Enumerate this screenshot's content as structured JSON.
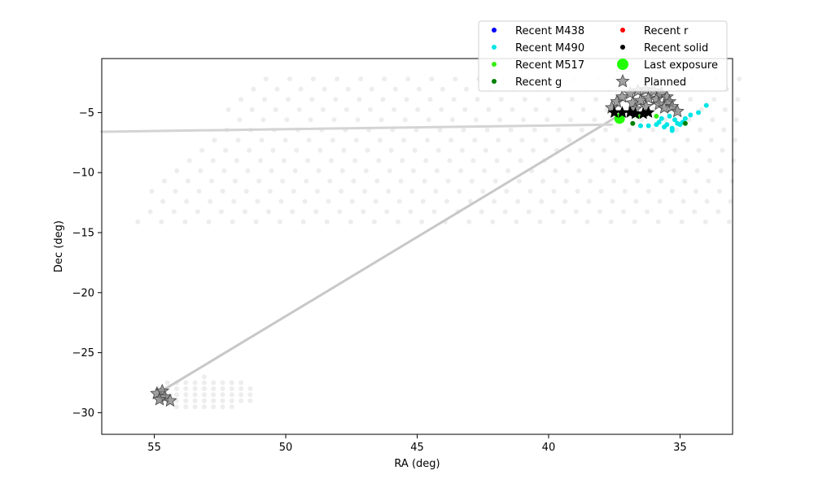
{
  "chart_data": {
    "type": "scatter",
    "title": "",
    "xlabel": "RA (deg)",
    "ylabel": "Dec (deg)",
    "xlim": [
      57.0,
      33.0
    ],
    "ylim": [
      -31.8,
      -0.5
    ],
    "x_inverted": true,
    "grid": false,
    "legend_position": "top-right, above plot",
    "xticks": [
      55,
      50,
      45,
      40,
      35
    ],
    "yticks": [
      -5,
      -10,
      -15,
      -20,
      -25,
      -30
    ],
    "legend": [
      {
        "label": "Recent M438",
        "color": "#0000ff",
        "marker": "dot"
      },
      {
        "label": "Recent M490",
        "color": "#00e5e5",
        "marker": "dot"
      },
      {
        "label": "Recent M517",
        "color": "#33ee11",
        "marker": "dot"
      },
      {
        "label": "Recent g",
        "color": "#008000",
        "marker": "dot"
      },
      {
        "label": "Recent r",
        "color": "#ff0000",
        "marker": "dot"
      },
      {
        "label": "Recent solid",
        "color": "#000000",
        "marker": "dot"
      },
      {
        "label": "Last exposure",
        "color": "#22ff00",
        "marker": "big-dot"
      },
      {
        "label": "Planned",
        "color": "#808080",
        "marker": "star"
      }
    ],
    "background_fields": {
      "color": "#d8d8d8",
      "regions": [
        {
          "name": "main-footprint",
          "ra_range": [
            33.2,
            56.6
          ],
          "dec_range": [
            -14.8,
            -2.2
          ]
        },
        {
          "name": "south-footprint",
          "ra_range": [
            51.0,
            55.2
          ],
          "dec_range": [
            -29.8,
            -27.0
          ]
        }
      ]
    },
    "series": [
      {
        "name": "Recent M490",
        "color": "#00e5e5",
        "points": [
          [
            35.8,
            -5.8
          ],
          [
            35.5,
            -6.0
          ],
          [
            35.3,
            -6.3
          ],
          [
            35.2,
            -5.6
          ],
          [
            35.0,
            -6.0
          ],
          [
            35.6,
            -6.2
          ],
          [
            35.9,
            -6.0
          ],
          [
            36.2,
            -6.1
          ],
          [
            34.8,
            -5.5
          ],
          [
            34.6,
            -5.2
          ],
          [
            34.3,
            -5.0
          ],
          [
            34.0,
            -4.4
          ],
          [
            35.4,
            -5.3
          ],
          [
            35.1,
            -5.9
          ],
          [
            36.5,
            -6.1
          ],
          [
            35.7,
            -5.5
          ],
          [
            35.3,
            -6.5
          ],
          [
            34.9,
            -5.8
          ]
        ]
      },
      {
        "name": "Recent M517",
        "color": "#33ee11",
        "points": [
          [
            35.9,
            -5.3
          ],
          [
            37.2,
            -5.6
          ],
          [
            36.6,
            -5.3
          ]
        ]
      },
      {
        "name": "Recent g",
        "color": "#008000",
        "points": [
          [
            36.8,
            -5.9
          ],
          [
            34.8,
            -5.9
          ]
        ]
      },
      {
        "name": "Last exposure",
        "color": "#22ff00",
        "points": [
          [
            37.3,
            -5.5
          ]
        ]
      },
      {
        "name": "Planned",
        "color": "#808080",
        "points": [
          [
            37.6,
            -4.6
          ],
          [
            37.4,
            -4.1
          ],
          [
            37.2,
            -3.7
          ],
          [
            36.9,
            -3.4
          ],
          [
            36.6,
            -3.2
          ],
          [
            36.3,
            -3.1
          ],
          [
            36.0,
            -3.2
          ],
          [
            35.7,
            -3.4
          ],
          [
            35.5,
            -3.7
          ],
          [
            35.4,
            -4.1
          ],
          [
            35.3,
            -4.5
          ],
          [
            35.1,
            -4.9
          ],
          [
            36.8,
            -4.2
          ],
          [
            36.5,
            -4.0
          ],
          [
            36.2,
            -3.8
          ],
          [
            35.9,
            -3.9
          ],
          [
            35.8,
            -4.3
          ],
          [
            36.3,
            -4.5
          ],
          [
            36.7,
            -4.7
          ],
          [
            35.6,
            -4.6
          ],
          [
            54.9,
            -28.4
          ],
          [
            54.7,
            -28.2
          ],
          [
            54.6,
            -28.7
          ],
          [
            54.4,
            -29.0
          ],
          [
            54.8,
            -28.9
          ]
        ]
      },
      {
        "name": "Planned (solid)",
        "color": "#000000",
        "points": [
          [
            37.5,
            -5.0
          ],
          [
            37.2,
            -5.0
          ],
          [
            36.9,
            -5.0
          ],
          [
            36.7,
            -5.1
          ],
          [
            36.4,
            -5.1
          ],
          [
            36.2,
            -5.0
          ]
        ]
      }
    ],
    "paths": [
      {
        "name": "slew-path-main",
        "color": "#c8c8c8",
        "points": [
          [
            37.3,
            -5.2
          ],
          [
            54.8,
            -28.3
          ]
        ]
      },
      {
        "name": "slew-path-west",
        "color": "#d4d4d4",
        "points": [
          [
            37.6,
            -6.0
          ],
          [
            57.0,
            -6.6
          ]
        ]
      }
    ]
  }
}
